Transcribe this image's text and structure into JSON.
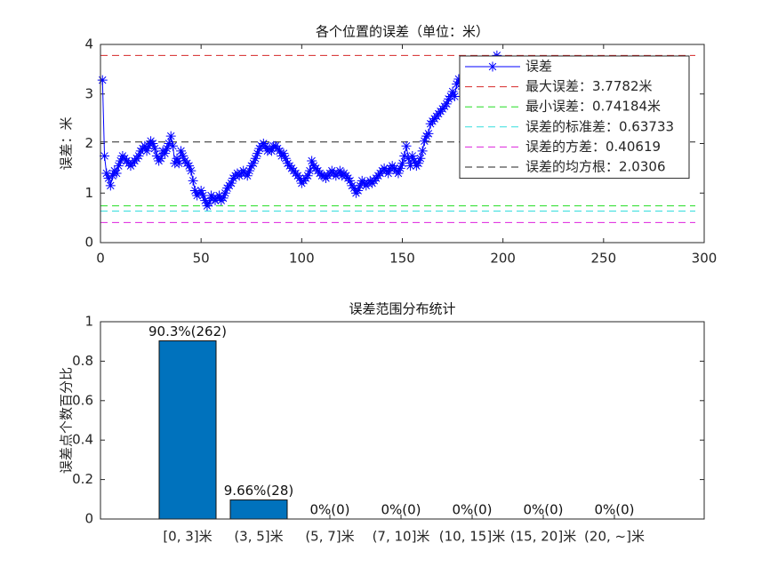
{
  "chart_data": [
    {
      "type": "line",
      "title": "各个位置的误差（单位：米）",
      "ylabel": "误差：米",
      "xlim": [
        0,
        300
      ],
      "xticks": [
        0,
        50,
        100,
        150,
        200,
        250,
        300
      ],
      "ylim": [
        0,
        4
      ],
      "yticks": [
        0,
        1,
        2,
        3,
        4
      ],
      "series": [
        {
          "name": "误差",
          "color": "#0000ff",
          "marker": "star",
          "x": [
            1,
            2,
            3,
            4,
            5,
            6,
            7,
            8,
            9,
            10,
            11,
            12,
            13,
            14,
            15,
            16,
            17,
            18,
            19,
            20,
            21,
            22,
            23,
            24,
            25,
            26,
            27,
            28,
            29,
            30,
            31,
            32,
            33,
            34,
            35,
            36,
            37,
            38,
            39,
            40,
            41,
            42,
            43,
            44,
            45,
            46,
            47,
            48,
            49,
            50,
            51,
            52,
            53,
            54,
            55,
            56,
            57,
            58,
            59,
            60,
            61,
            62,
            63,
            64,
            65,
            66,
            67,
            68,
            69,
            70,
            71,
            72,
            73,
            74,
            75,
            76,
            77,
            78,
            79,
            80,
            81,
            82,
            83,
            84,
            85,
            86,
            87,
            88,
            89,
            90,
            91,
            92,
            93,
            94,
            95,
            96,
            97,
            98,
            99,
            100,
            101,
            102,
            103,
            104,
            105,
            106,
            107,
            108,
            109,
            110,
            111,
            112,
            113,
            114,
            115,
            116,
            117,
            118,
            119,
            120,
            121,
            122,
            123,
            124,
            125,
            126,
            127,
            128,
            129,
            130,
            131,
            132,
            133,
            134,
            135,
            136,
            137,
            138,
            139,
            140,
            141,
            142,
            143,
            144,
            145,
            146,
            147,
            148,
            149,
            150,
            151,
            152,
            153,
            154,
            155,
            156,
            157,
            158,
            159,
            160,
            161,
            162,
            163,
            164,
            165,
            166,
            167,
            168,
            169,
            170,
            171,
            172,
            173,
            174,
            175,
            176,
            177,
            178,
            179,
            180,
            181,
            182,
            183,
            184,
            185,
            186,
            187,
            188,
            189,
            190,
            191,
            192,
            193,
            194,
            195,
            196,
            197,
            198,
            199,
            200,
            201,
            202,
            203,
            204,
            205,
            206,
            207,
            208,
            209,
            210,
            211,
            212,
            213,
            214,
            215,
            216,
            217,
            218,
            219,
            220,
            221,
            222,
            223,
            224,
            225,
            226,
            227,
            228,
            229,
            230,
            231,
            232,
            233,
            234,
            235,
            236,
            237,
            238,
            239,
            240,
            241,
            242,
            243,
            244,
            245,
            246,
            247,
            248,
            249,
            250,
            251,
            252,
            253,
            254,
            255,
            256,
            257,
            258,
            259,
            260,
            261,
            262,
            263,
            264,
            265,
            266,
            267,
            268,
            269,
            270,
            271,
            272,
            273,
            274,
            275,
            276,
            277,
            278,
            279,
            280,
            281,
            282,
            283,
            284,
            285,
            286,
            287,
            288,
            289,
            290
          ],
          "values": [
            3.28,
            1.75,
            1.4,
            1.3,
            1.15,
            1.35,
            1.45,
            1.4,
            1.55,
            1.65,
            1.75,
            1.7,
            1.65,
            1.6,
            1.55,
            1.6,
            1.65,
            1.7,
            1.75,
            1.85,
            1.9,
            1.95,
            1.85,
            1.95,
            2.05,
            2.0,
            1.9,
            1.75,
            1.65,
            1.7,
            1.85,
            1.8,
            1.9,
            2.0,
            2.15,
            1.95,
            1.6,
            1.7,
            1.6,
            1.85,
            1.75,
            1.65,
            1.6,
            1.55,
            1.45,
            1.25,
            1.05,
            0.95,
            1.0,
            1.05,
            0.95,
            0.85,
            0.74184,
            0.8,
            0.95,
            0.9,
            0.85,
            0.9,
            0.95,
            0.85,
            0.9,
            1.0,
            1.1,
            1.15,
            1.2,
            1.3,
            1.35,
            1.4,
            1.35,
            1.4,
            1.45,
            1.4,
            1.35,
            1.45,
            1.55,
            1.6,
            1.7,
            1.8,
            1.9,
            1.95,
            2.0,
            1.95,
            1.85,
            1.9,
            1.85,
            1.95,
            1.95,
            1.9,
            1.85,
            1.75,
            1.8,
            1.7,
            1.6,
            1.55,
            1.5,
            1.45,
            1.4,
            1.35,
            1.3,
            1.2,
            1.25,
            1.3,
            1.35,
            1.45,
            1.65,
            1.55,
            1.5,
            1.45,
            1.4,
            1.35,
            1.35,
            1.3,
            1.35,
            1.4,
            1.45,
            1.4,
            1.35,
            1.4,
            1.45,
            1.35,
            1.4,
            1.35,
            1.3,
            1.25,
            1.15,
            1.1,
            1.0,
            1.05,
            1.15,
            1.25,
            1.2,
            1.15,
            1.2,
            1.25,
            1.2,
            1.25,
            1.3,
            1.35,
            1.4,
            1.45,
            1.5,
            1.45,
            1.4,
            1.5,
            1.55,
            1.5,
            1.45,
            1.4,
            1.5,
            1.6,
            1.75,
            1.95,
            1.7,
            1.55,
            1.75,
            1.65,
            1.55,
            1.6,
            1.7,
            1.85,
            2.05,
            2.15,
            2.2,
            2.4,
            2.45,
            2.5,
            2.55,
            2.6,
            2.65,
            2.7,
            2.75,
            2.8,
            2.9,
            2.95,
            3.05,
            2.95,
            3.2,
            3.3,
            3.2,
            3.1,
            3.0,
            3.15,
            3.2,
            3.1,
            3.0,
            2.95,
            3.05,
            3.2,
            3.3,
            3.25,
            3.4,
            3.35,
            3.5,
            3.45,
            3.6,
            3.7,
            3.7782,
            3.5,
            3.3,
            3.1,
            2.95,
            2.9,
            2.85,
            2.8,
            2.9,
            3.0,
            2.85,
            2.7,
            2.6,
            2.55,
            2.5,
            2.6,
            2.7,
            2.65,
            2.55,
            2.4,
            2.3,
            2.35,
            2.45,
            2.5,
            2.4,
            2.3,
            2.2,
            2.15,
            2.25,
            2.35,
            2.3,
            2.2,
            2.1,
            2.05,
            2.15,
            2.25,
            2.3,
            2.2,
            2.1,
            2.0,
            1.95,
            2.05,
            2.15,
            2.2,
            2.1,
            2.0,
            1.9,
            1.85,
            1.95,
            2.05,
            2.1,
            2.0,
            1.9,
            1.85,
            1.8,
            1.9,
            2.0,
            2.1,
            2.2,
            2.3,
            2.25,
            2.15,
            2.05,
            2.0,
            2.1,
            2.2,
            2.3,
            2.4,
            2.35,
            2.25,
            2.15,
            2.05,
            1.95,
            1.9,
            2.0,
            2.1,
            2.2,
            2.15,
            2.05,
            1.95,
            1.85,
            1.8,
            1.9,
            2.0,
            2.1,
            2.05,
            1.95,
            1.9,
            1.85,
            1.95,
            2.05,
            2.1,
            2.0,
            1.95
          ]
        }
      ],
      "hlines": [
        {
          "name": "最大误差：3.7782米",
          "value": 3.7782,
          "color": "#d62728"
        },
        {
          "name": "最小误差：0.74184米",
          "value": 0.74184,
          "color": "#22dd22"
        },
        {
          "name": "误差的标准差：0.63733",
          "value": 0.63733,
          "color": "#33dddd"
        },
        {
          "name": "误差的方差：0.40619",
          "value": 0.40619,
          "color": "#dd22dd"
        },
        {
          "name": "误差的均方根：2.0306",
          "value": 2.0306,
          "color": "#222222"
        }
      ]
    },
    {
      "type": "bar",
      "title": "误差范围分布统计",
      "ylabel": "误差点个数百分比",
      "categories": [
        "[0, 3]米",
        "(3, 5]米",
        "(5, 7]米",
        "(7, 10]米",
        "(10, 15]米",
        "(15, 20]米",
        "(20, ~]米"
      ],
      "values": [
        0.903,
        0.0966,
        0,
        0,
        0,
        0,
        0
      ],
      "value_labels": [
        "90.3%(262)",
        "9.66%(28)",
        "0%(0)",
        "0%(0)",
        "0%(0)",
        "0%(0)",
        "0%(0)"
      ],
      "color": "#0072bd",
      "ylim": [
        0,
        1
      ],
      "yticks": [
        0,
        0.2,
        0.4,
        0.6,
        0.8,
        1
      ]
    }
  ]
}
